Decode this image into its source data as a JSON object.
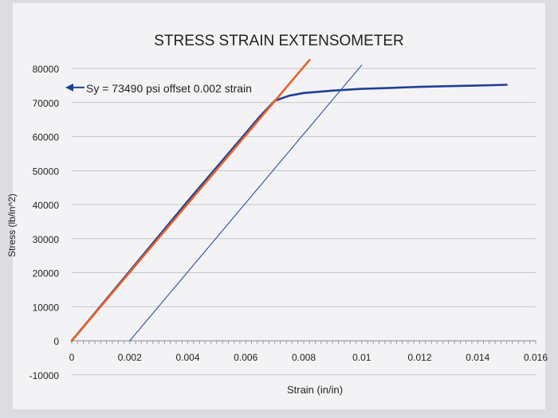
{
  "chart_data": {
    "type": "line",
    "title": "STRESS STRAIN EXTENSOMETER",
    "xlabel": "Strain (in/in)",
    "ylabel": "Stress (lb/in^2)",
    "xlim": [
      0,
      0.016
    ],
    "ylim": [
      -10000,
      80000
    ],
    "x_ticks": [
      "0",
      "0.002",
      "0.004",
      "0.006",
      "0.008",
      "0.01",
      "0.012",
      "0.014",
      "0.016"
    ],
    "y_ticks": [
      "-10000",
      "0",
      "10000",
      "20000",
      "30000",
      "40000",
      "50000",
      "60000",
      "70000",
      "80000"
    ],
    "grid": "horizontal",
    "legend": "none",
    "series": [
      {
        "color": "#1f3f95",
        "x": [
          0,
          0.002,
          0.004,
          0.006,
          0.0065,
          0.007,
          0.0075,
          0.008,
          0.009,
          0.01,
          0.011,
          0.012,
          0.013,
          0.014,
          0.015
        ],
        "y": [
          0,
          20500,
          41000,
          61000,
          66000,
          70500,
          72000,
          72800,
          73500,
          74000,
          74300,
          74600,
          74800,
          75000,
          75200
        ]
      },
      {
        "color": "#e8612a",
        "x": [
          0,
          0.0082
        ],
        "y": [
          0,
          82500
        ]
      },
      {
        "color": "#2c4fa3",
        "x": [
          0.002,
          0.01
        ],
        "y": [
          0,
          81000
        ]
      }
    ],
    "annotations": [
      {
        "text": "Sy = 73490 psi offset 0.002 strain",
        "x": 0.0002,
        "y": 73490,
        "arrow": true
      }
    ]
  }
}
